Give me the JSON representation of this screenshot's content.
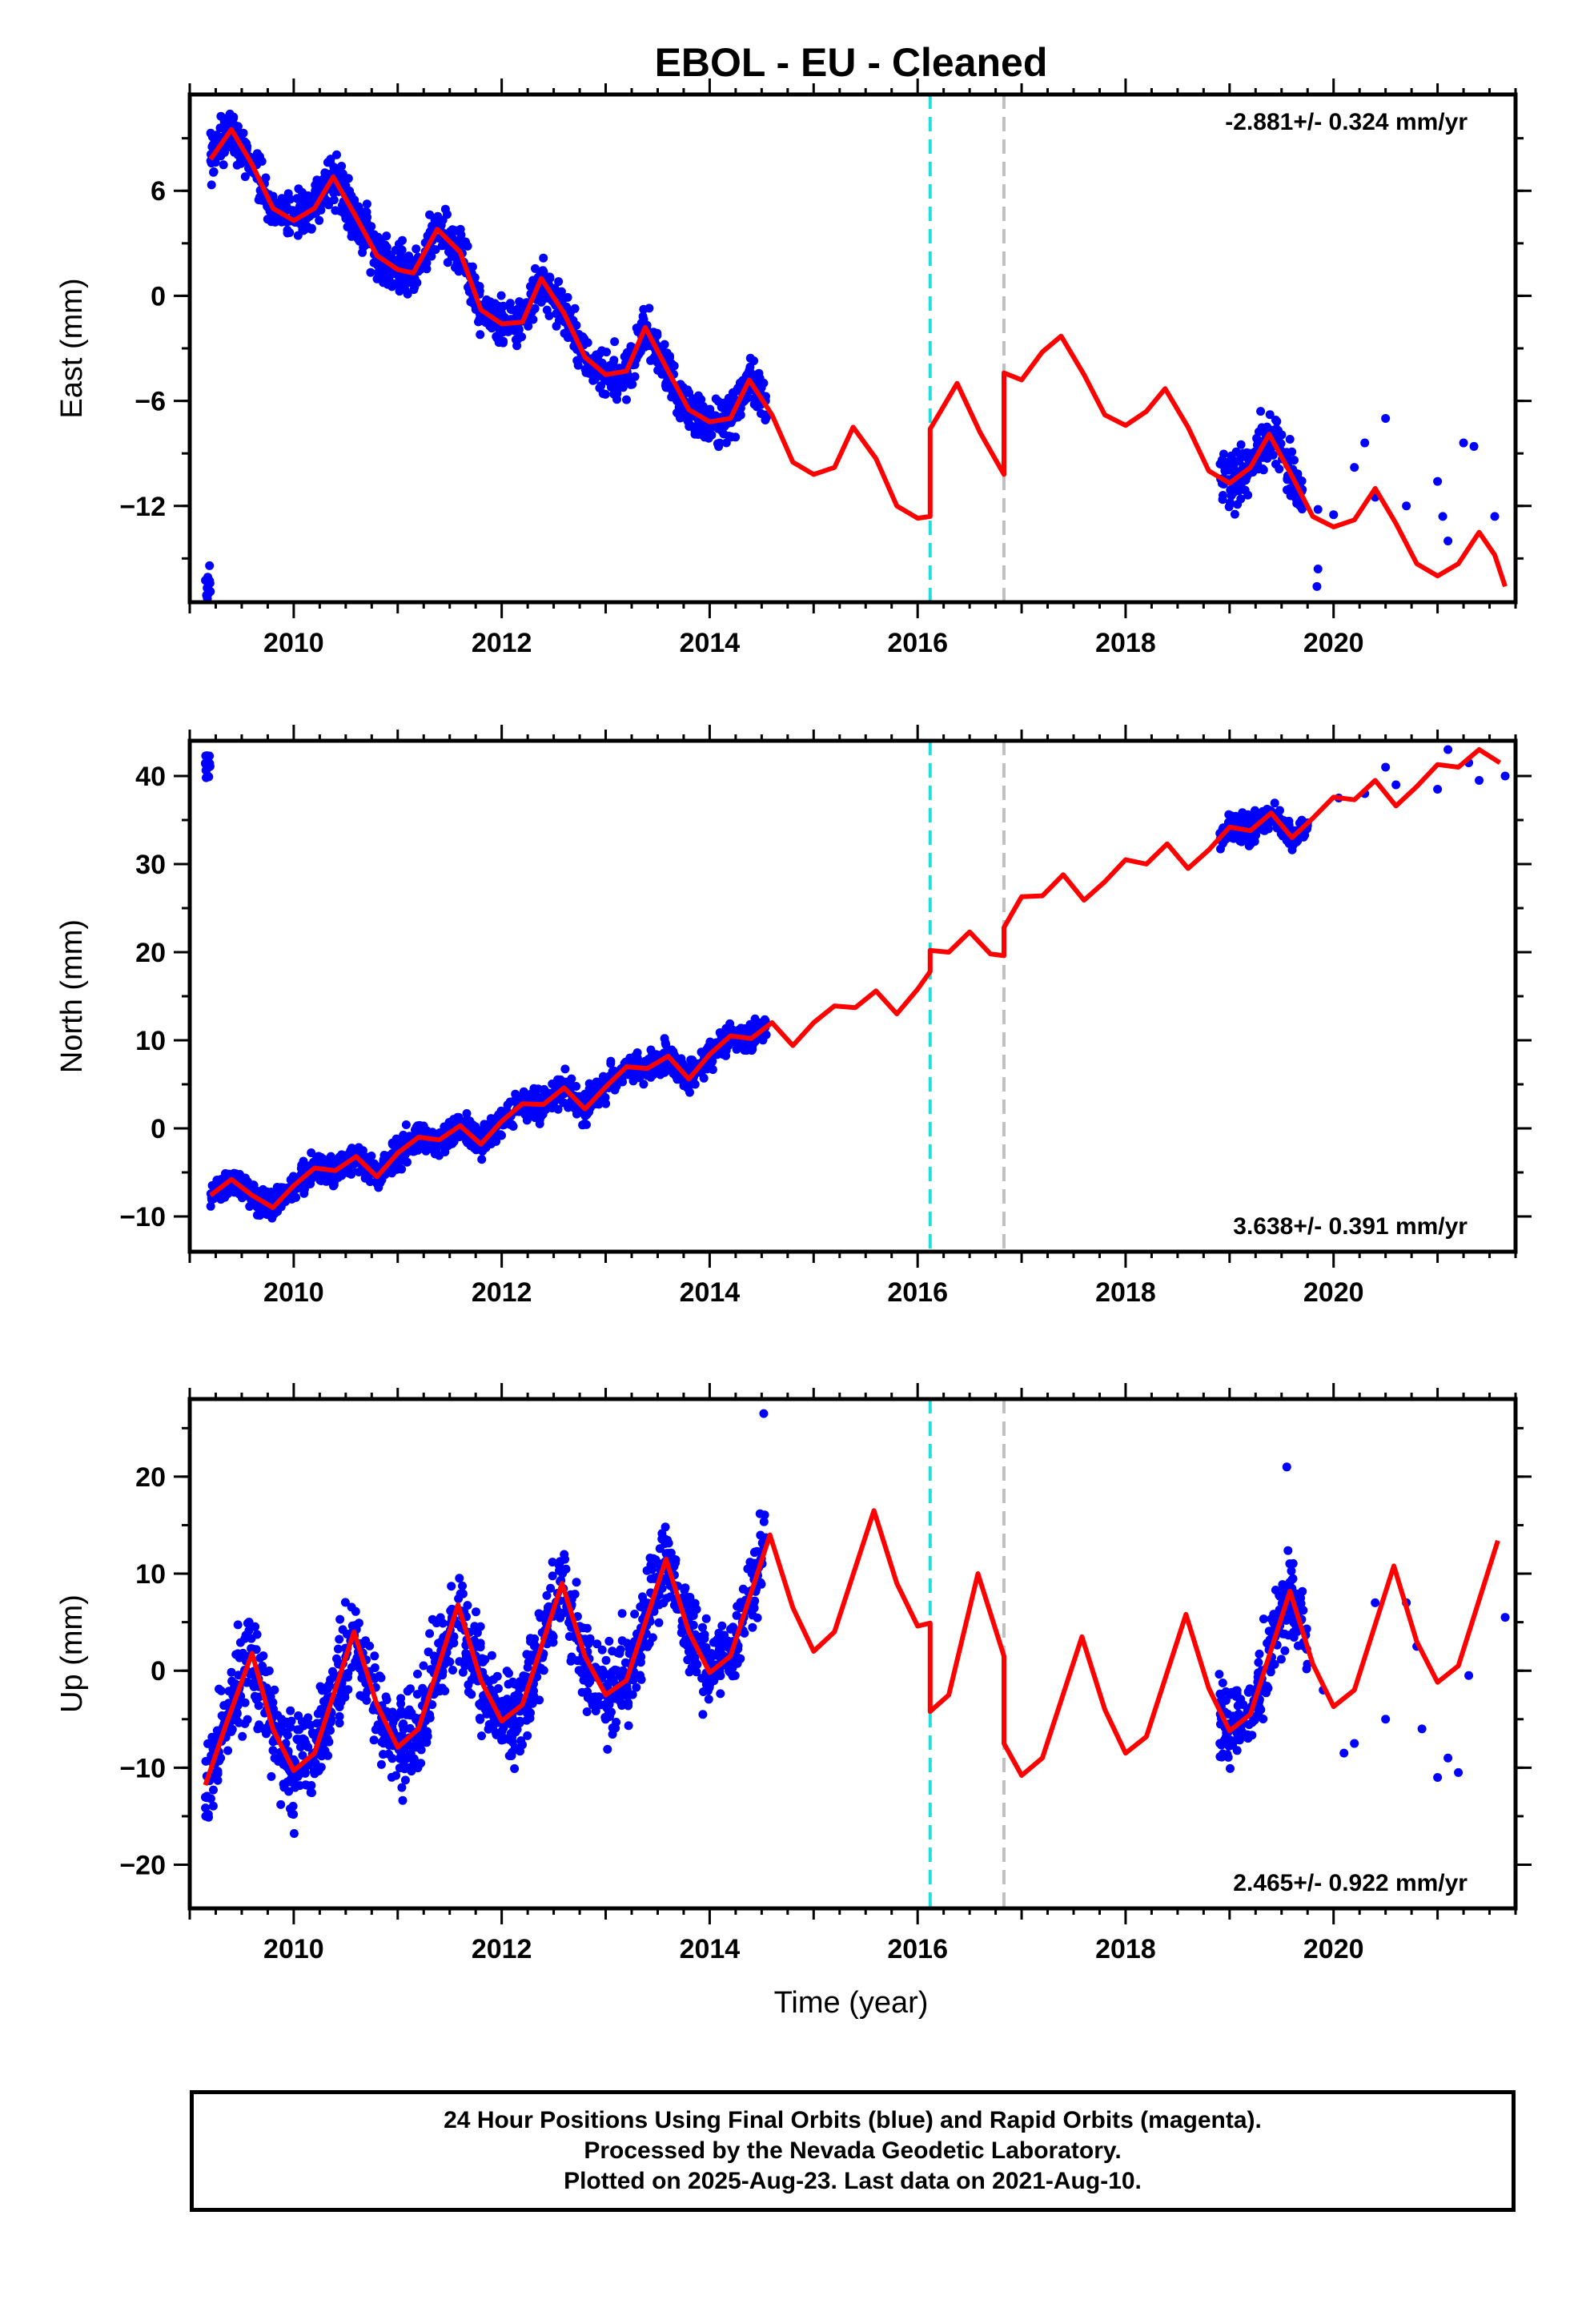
{
  "chart_data": {
    "title": "EBOL  - EU - Cleaned",
    "xlabel": "Time (year)",
    "xlim": [
      2009.0,
      2021.75
    ],
    "x_ticks": [
      2010,
      2012,
      2014,
      2016,
      2018,
      2020
    ],
    "legend": "none",
    "series_colors": {
      "data": "#0000ff",
      "model": "#ff0000"
    },
    "offsets": [
      {
        "year": 2016.12,
        "color": "#22dddd",
        "style": "dashed"
      },
      {
        "year": 2016.83,
        "color": "#c0c0c0",
        "style": "dashed"
      }
    ],
    "panels": [
      {
        "type": "scatter",
        "ylabel": "East (mm)",
        "ylim": [
          -17.5,
          11.5
        ],
        "y_ticks": [
          6,
          0,
          -6,
          -12
        ],
        "rate": "-2.881+/- 0.324 mm/yr",
        "rate_position": "top-right",
        "model_line": [
          [
            2009.2,
            7.8
          ],
          [
            2009.4,
            9.5
          ],
          [
            2009.6,
            7.5
          ],
          [
            2009.8,
            5.0
          ],
          [
            2010.0,
            4.3
          ],
          [
            2010.2,
            5.0
          ],
          [
            2010.38,
            6.8
          ],
          [
            2010.6,
            4.5
          ],
          [
            2010.8,
            2.3
          ],
          [
            2011.0,
            1.5
          ],
          [
            2011.15,
            1.3
          ],
          [
            2011.38,
            3.8
          ],
          [
            2011.6,
            2.5
          ],
          [
            2011.8,
            -0.8
          ],
          [
            2012.0,
            -1.6
          ],
          [
            2012.2,
            -1.5
          ],
          [
            2012.38,
            1.0
          ],
          [
            2012.6,
            -1.0
          ],
          [
            2012.8,
            -3.5
          ],
          [
            2013.0,
            -4.5
          ],
          [
            2013.2,
            -4.3
          ],
          [
            2013.38,
            -1.8
          ],
          [
            2013.6,
            -4.3
          ],
          [
            2013.8,
            -6.5
          ],
          [
            2014.0,
            -7.2
          ],
          [
            2014.2,
            -7.0
          ],
          [
            2014.38,
            -4.8
          ],
          [
            2014.6,
            -6.8
          ],
          [
            2014.8,
            -9.5
          ],
          [
            2015.0,
            -10.2
          ],
          [
            2015.2,
            -9.8
          ],
          [
            2015.38,
            -7.5
          ],
          [
            2015.6,
            -9.3
          ],
          [
            2015.8,
            -12.0
          ],
          [
            2016.0,
            -12.7
          ],
          [
            2016.12,
            -12.6
          ],
          [
            2016.12,
            -7.6
          ],
          [
            2016.2,
            -6.8
          ],
          [
            2016.38,
            -5.0
          ],
          [
            2016.6,
            -7.8
          ],
          [
            2016.83,
            -10.2
          ],
          [
            2016.83,
            -4.4
          ],
          [
            2017.0,
            -4.8
          ],
          [
            2017.2,
            -3.2
          ],
          [
            2017.38,
            -2.3
          ],
          [
            2017.6,
            -4.5
          ],
          [
            2017.8,
            -6.8
          ],
          [
            2018.0,
            -7.4
          ],
          [
            2018.2,
            -6.6
          ],
          [
            2018.38,
            -5.3
          ],
          [
            2018.6,
            -7.5
          ],
          [
            2018.8,
            -10.0
          ],
          [
            2019.0,
            -10.7
          ],
          [
            2019.2,
            -9.8
          ],
          [
            2019.38,
            -7.9
          ],
          [
            2019.6,
            -10.3
          ],
          [
            2019.8,
            -12.6
          ],
          [
            2020.0,
            -13.2
          ],
          [
            2020.2,
            -12.8
          ],
          [
            2020.4,
            -11.0
          ],
          [
            2020.6,
            -13.0
          ],
          [
            2020.8,
            -15.3
          ],
          [
            2021.0,
            -16.0
          ],
          [
            2021.2,
            -15.3
          ],
          [
            2021.4,
            -13.5
          ],
          [
            2021.55,
            -14.8
          ],
          [
            2021.65,
            -16.6
          ]
        ],
        "data_clusters": [
          {
            "t0": 2009.15,
            "t1": 2014.55,
            "sigma": 1.1
          },
          {
            "t0": 2018.9,
            "t1": 2019.7,
            "sigma": 1.3
          }
        ],
        "sparse_points": [
          [
            2019.85,
            -12.2
          ],
          [
            2020.0,
            -12.5
          ],
          [
            2020.2,
            -9.8
          ],
          [
            2020.3,
            -8.4
          ],
          [
            2020.4,
            -11.5
          ],
          [
            2020.5,
            -7.0
          ],
          [
            2020.7,
            -12.0
          ],
          [
            2021.0,
            -10.6
          ],
          [
            2021.05,
            -12.6
          ],
          [
            2021.1,
            -14.0
          ],
          [
            2021.25,
            -8.4
          ],
          [
            2021.35,
            -8.6
          ],
          [
            2021.55,
            -12.6
          ],
          [
            2019.85,
            -15.6
          ],
          [
            2019.84,
            -16.6
          ]
        ]
      },
      {
        "type": "scatter",
        "ylabel": "North (mm)",
        "ylim": [
          -14,
          44
        ],
        "y_ticks": [
          40,
          30,
          20,
          10,
          0,
          -10
        ],
        "rate": "3.638+/- 0.391 mm/yr",
        "rate_position": "bottom-right",
        "model_line": [
          [
            2009.2,
            -7.6
          ],
          [
            2009.4,
            -5.8
          ],
          [
            2009.6,
            -7.6
          ],
          [
            2009.8,
            -9.0
          ],
          [
            2010.0,
            -6.5
          ],
          [
            2010.2,
            -4.5
          ],
          [
            2010.4,
            -4.8
          ],
          [
            2010.6,
            -3.2
          ],
          [
            2010.8,
            -5.5
          ],
          [
            2011.0,
            -2.8
          ],
          [
            2011.2,
            -1.0
          ],
          [
            2011.4,
            -1.3
          ],
          [
            2011.6,
            0.3
          ],
          [
            2011.8,
            -1.8
          ],
          [
            2012.0,
            0.8
          ],
          [
            2012.2,
            2.8
          ],
          [
            2012.4,
            2.7
          ],
          [
            2012.6,
            4.6
          ],
          [
            2012.8,
            2.2
          ],
          [
            2013.0,
            4.7
          ],
          [
            2013.2,
            7.0
          ],
          [
            2013.4,
            6.8
          ],
          [
            2013.6,
            8.2
          ],
          [
            2013.8,
            5.6
          ],
          [
            2014.0,
            8.4
          ],
          [
            2014.2,
            10.5
          ],
          [
            2014.4,
            10.2
          ],
          [
            2014.6,
            12.0
          ],
          [
            2014.8,
            9.4
          ],
          [
            2015.0,
            12.0
          ],
          [
            2015.2,
            13.9
          ],
          [
            2015.4,
            13.7
          ],
          [
            2015.6,
            15.6
          ],
          [
            2015.8,
            13.0
          ],
          [
            2016.0,
            15.8
          ],
          [
            2016.12,
            17.8
          ],
          [
            2016.12,
            20.2
          ],
          [
            2016.3,
            20.0
          ],
          [
            2016.5,
            22.3
          ],
          [
            2016.7,
            19.8
          ],
          [
            2016.83,
            19.6
          ],
          [
            2016.83,
            22.8
          ],
          [
            2017.0,
            26.3
          ],
          [
            2017.2,
            26.4
          ],
          [
            2017.4,
            28.8
          ],
          [
            2017.6,
            25.9
          ],
          [
            2017.8,
            28.0
          ],
          [
            2018.0,
            30.5
          ],
          [
            2018.2,
            30.0
          ],
          [
            2018.4,
            32.3
          ],
          [
            2018.6,
            29.5
          ],
          [
            2018.8,
            31.6
          ],
          [
            2019.0,
            34.2
          ],
          [
            2019.2,
            33.8
          ],
          [
            2019.4,
            35.8
          ],
          [
            2019.6,
            33.0
          ],
          [
            2019.8,
            35.2
          ],
          [
            2020.0,
            37.6
          ],
          [
            2020.2,
            37.3
          ],
          [
            2020.4,
            39.5
          ],
          [
            2020.6,
            36.6
          ],
          [
            2020.8,
            38.8
          ],
          [
            2021.0,
            41.3
          ],
          [
            2021.2,
            41.0
          ],
          [
            2021.4,
            43.0
          ],
          [
            2021.6,
            41.5
          ]
        ],
        "data_clusters": [
          {
            "t0": 2009.15,
            "t1": 2014.55,
            "sigma": 1.4
          },
          {
            "t0": 2018.9,
            "t1": 2019.75,
            "sigma": 1.3
          }
        ],
        "sparse_points": [
          [
            2020.05,
            37.5
          ],
          [
            2020.3,
            38.0
          ],
          [
            2020.5,
            41.0
          ],
          [
            2020.6,
            39.0
          ],
          [
            2021.0,
            38.5
          ],
          [
            2021.1,
            43.0
          ],
          [
            2021.3,
            41.5
          ],
          [
            2021.4,
            39.5
          ],
          [
            2021.65,
            40.0
          ]
        ]
      },
      {
        "type": "scatter",
        "ylabel": "Up (mm)",
        "ylim": [
          -24.5,
          28
        ],
        "y_ticks": [
          20,
          10,
          0,
          -10,
          -20
        ],
        "rate": "2.465+/- 0.922 mm/yr",
        "rate_position": "bottom-right",
        "model_line": [
          [
            2009.15,
            -11.8
          ],
          [
            2009.35,
            -5.5
          ],
          [
            2009.6,
            1.8
          ],
          [
            2009.8,
            -6.0
          ],
          [
            2010.0,
            -10.3
          ],
          [
            2010.2,
            -8.5
          ],
          [
            2010.58,
            4.0
          ],
          [
            2010.8,
            -3.5
          ],
          [
            2011.0,
            -7.9
          ],
          [
            2011.2,
            -6.0
          ],
          [
            2011.58,
            6.8
          ],
          [
            2011.8,
            -1.0
          ],
          [
            2012.0,
            -5.2
          ],
          [
            2012.2,
            -3.5
          ],
          [
            2012.58,
            9.0
          ],
          [
            2012.8,
            1.5
          ],
          [
            2013.0,
            -2.5
          ],
          [
            2013.2,
            -1.0
          ],
          [
            2013.58,
            11.5
          ],
          [
            2013.8,
            4.0
          ],
          [
            2014.0,
            -0.2
          ],
          [
            2014.2,
            1.5
          ],
          [
            2014.58,
            14.0
          ],
          [
            2014.8,
            6.5
          ],
          [
            2015.0,
            2.0
          ],
          [
            2015.2,
            4.0
          ],
          [
            2015.58,
            16.5
          ],
          [
            2015.8,
            9.0
          ],
          [
            2016.0,
            4.6
          ],
          [
            2016.12,
            4.9
          ],
          [
            2016.12,
            -4.2
          ],
          [
            2016.3,
            -2.5
          ],
          [
            2016.58,
            10.0
          ],
          [
            2016.83,
            1.5
          ],
          [
            2016.83,
            -7.5
          ],
          [
            2017.0,
            -10.8
          ],
          [
            2017.2,
            -9.0
          ],
          [
            2017.58,
            3.5
          ],
          [
            2017.8,
            -4.0
          ],
          [
            2018.0,
            -8.5
          ],
          [
            2018.2,
            -6.8
          ],
          [
            2018.58,
            5.8
          ],
          [
            2018.8,
            -1.8
          ],
          [
            2019.0,
            -6.2
          ],
          [
            2019.2,
            -4.5
          ],
          [
            2019.58,
            8.2
          ],
          [
            2019.8,
            0.7
          ],
          [
            2020.0,
            -3.7
          ],
          [
            2020.2,
            -2.0
          ],
          [
            2020.58,
            10.8
          ],
          [
            2020.8,
            3.0
          ],
          [
            2021.0,
            -1.2
          ],
          [
            2021.2,
            0.5
          ],
          [
            2021.58,
            13.4
          ]
        ],
        "data_clusters": [
          {
            "t0": 2009.15,
            "t1": 2014.55,
            "sigma": 4.0
          },
          {
            "t0": 2018.9,
            "t1": 2019.75,
            "sigma": 3.5
          }
        ],
        "sparse_points": [
          [
            2014.52,
            26.5
          ],
          [
            2019.55,
            21.0
          ],
          [
            2019.9,
            -2.0
          ],
          [
            2020.1,
            -8.5
          ],
          [
            2020.2,
            -7.5
          ],
          [
            2020.4,
            7.0
          ],
          [
            2020.5,
            -5.0
          ],
          [
            2020.7,
            7.0
          ],
          [
            2020.8,
            2.5
          ],
          [
            2020.85,
            -6.0
          ],
          [
            2021.0,
            -11.0
          ],
          [
            2021.1,
            -9.0
          ],
          [
            2021.2,
            -10.5
          ],
          [
            2021.3,
            -0.5
          ],
          [
            2021.65,
            5.5
          ]
        ]
      }
    ]
  },
  "footer": {
    "line1": "24 Hour Positions Using Final Orbits (blue) and Rapid Orbits (magenta).",
    "line2": "Processed by the Nevada Geodetic Laboratory.",
    "line3": "Plotted on 2025-Aug-23. Last data on 2021-Aug-10."
  }
}
